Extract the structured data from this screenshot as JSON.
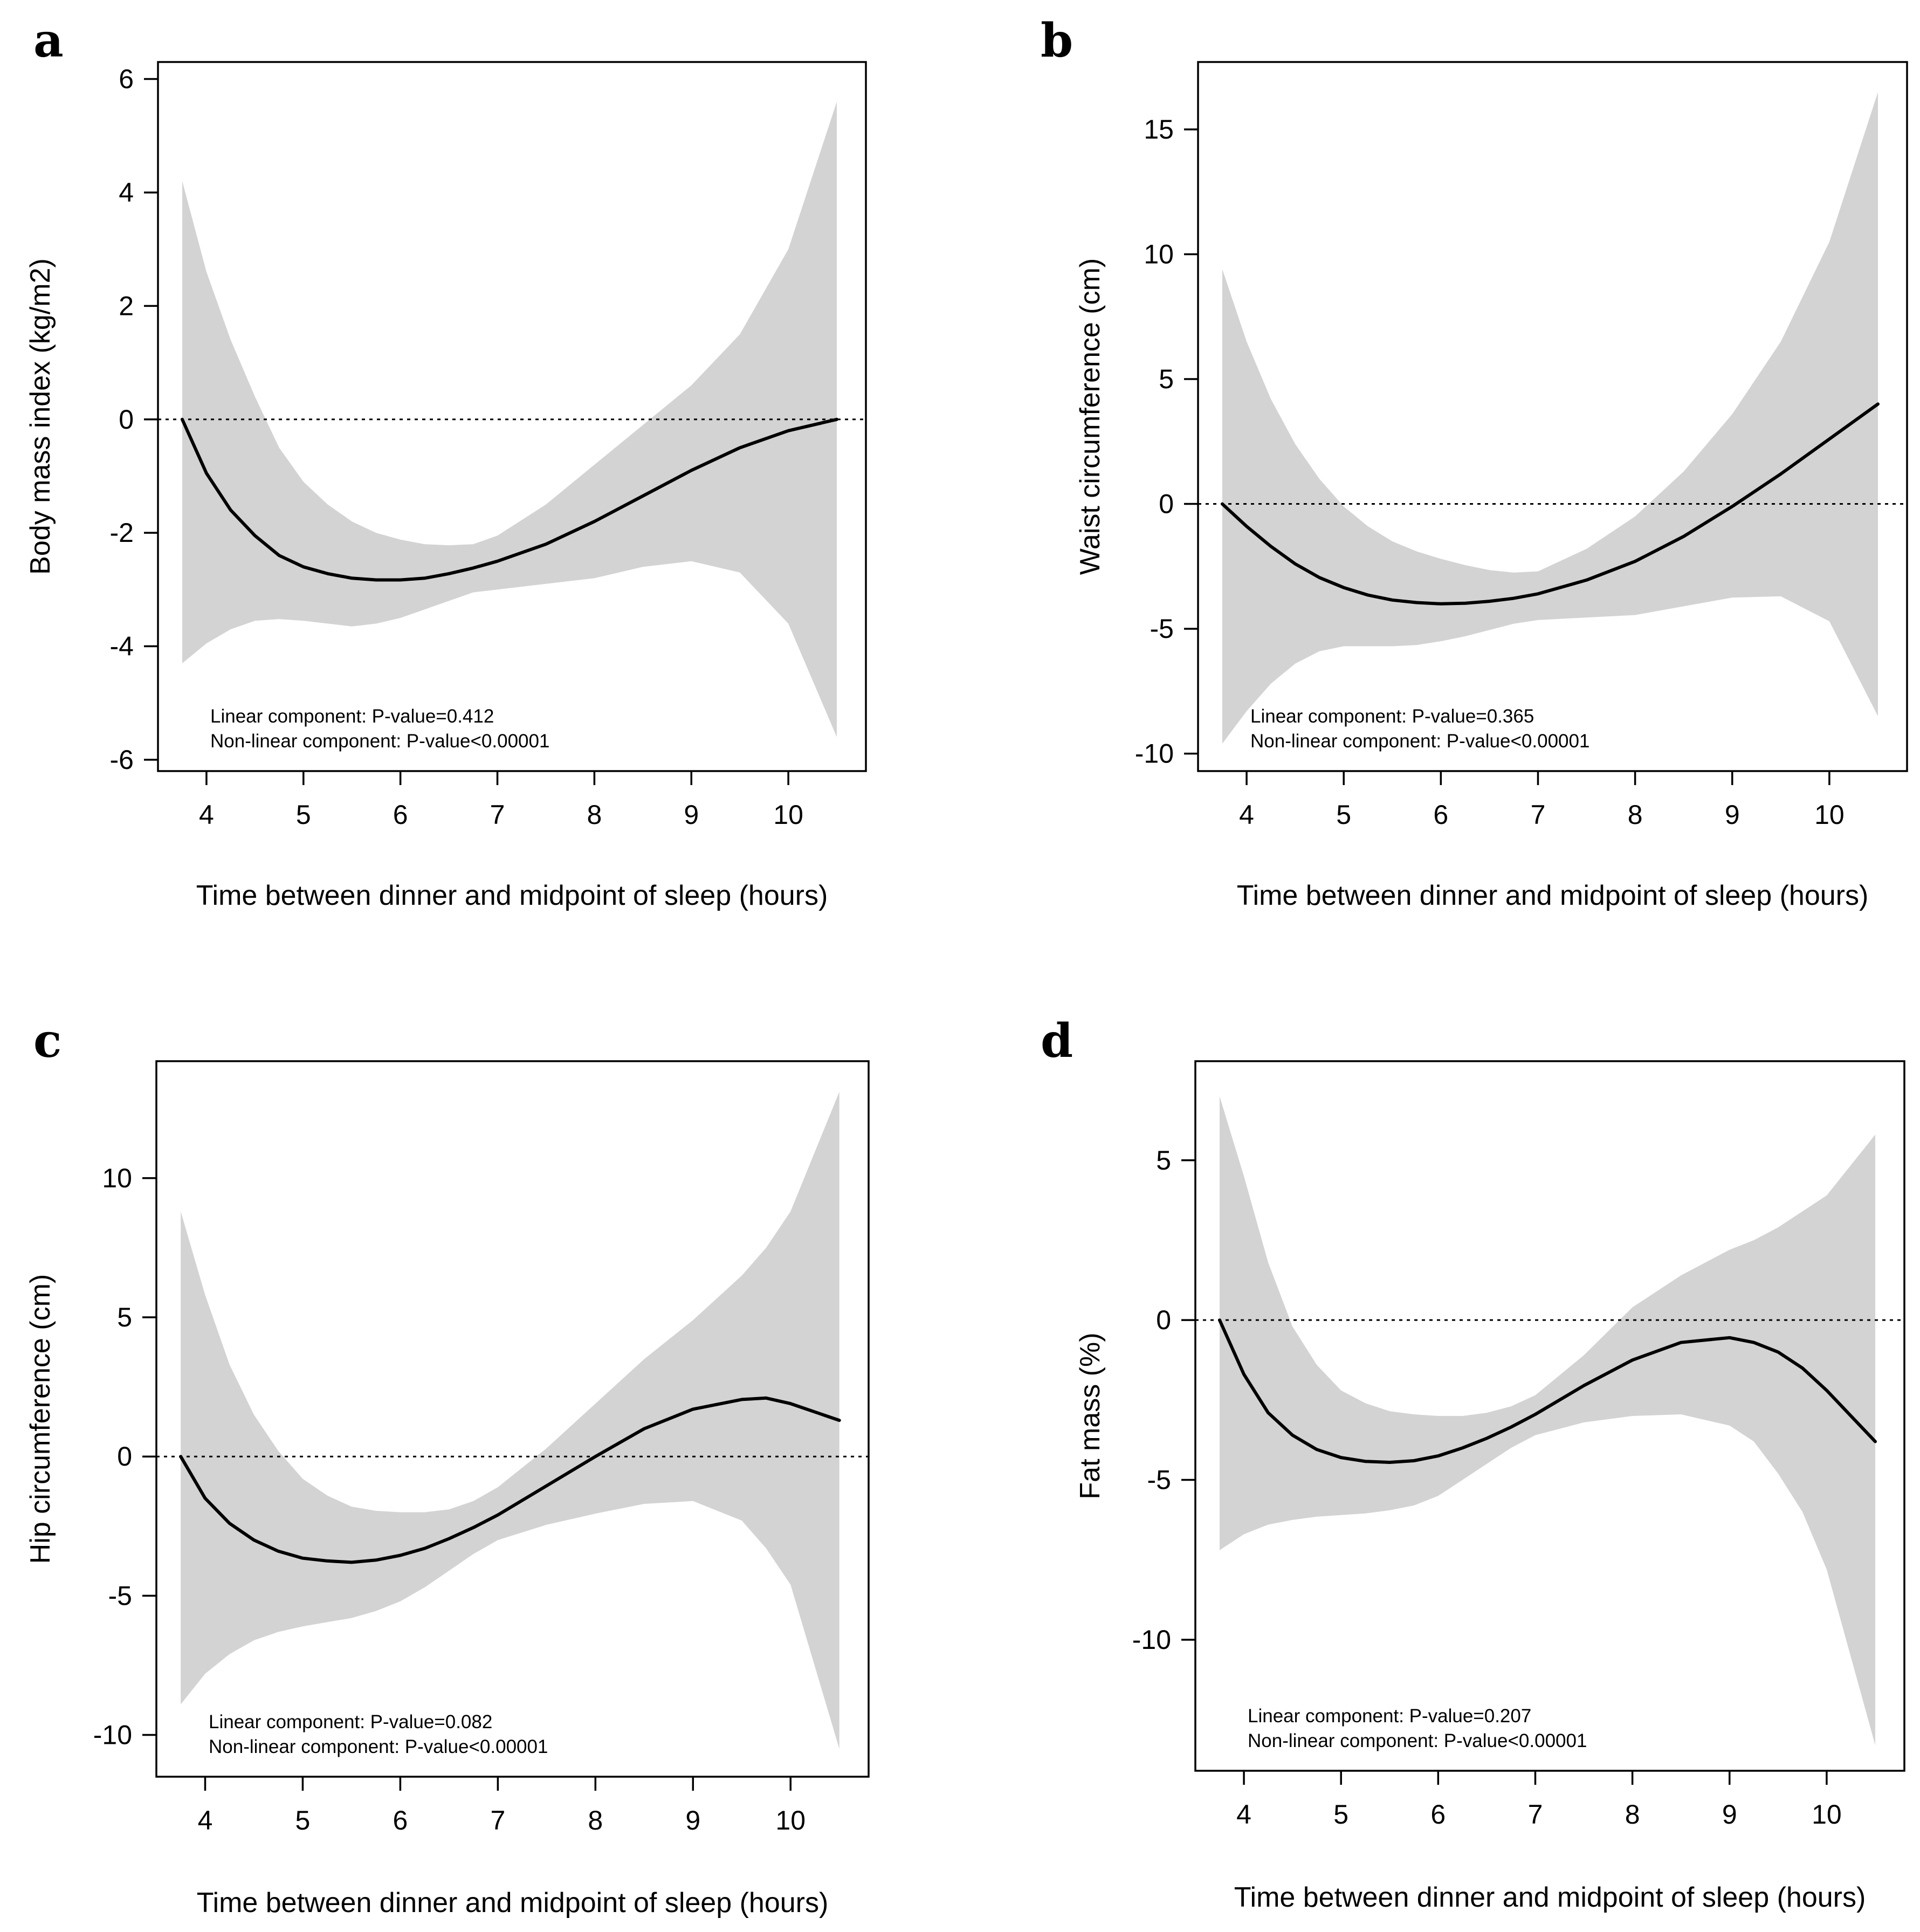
{
  "chart_data": [
    {
      "type": "line",
      "panel_label": "a",
      "xlabel": "Time between dinner and midpoint of sleep (hours)",
      "ylabel": "Body mass index (kg/m2)",
      "xlim": [
        3.5,
        10.8
      ],
      "ylim": [
        -6.2,
        6.3
      ],
      "xticks": [
        "4",
        "5",
        "6",
        "7",
        "8",
        "9",
        "10"
      ],
      "yticks": [
        "-6",
        "-4",
        "-2",
        "0",
        "2",
        "4",
        "6"
      ],
      "reference_line": 0,
      "annotations": [
        "Linear component: P-value=0.412",
        "Non-linear component: P-value<0.00001"
      ],
      "series": [
        {
          "name": "estimate",
          "x": [
            3.75,
            4.0,
            4.25,
            4.5,
            4.75,
            5.0,
            5.25,
            5.5,
            5.75,
            6.0,
            6.25,
            6.5,
            6.75,
            7.0,
            7.5,
            8.0,
            8.5,
            9.0,
            9.5,
            10.0,
            10.5
          ],
          "y": [
            0.0,
            -0.95,
            -1.6,
            -2.05,
            -2.4,
            -2.6,
            -2.72,
            -2.8,
            -2.83,
            -2.83,
            -2.8,
            -2.72,
            -2.62,
            -2.5,
            -2.2,
            -1.8,
            -1.35,
            -0.9,
            -0.5,
            -0.2,
            0.0
          ]
        },
        {
          "name": "95% CI upper",
          "x": [
            3.75,
            4.0,
            4.25,
            4.5,
            4.75,
            5.0,
            5.25,
            5.5,
            5.75,
            6.0,
            6.25,
            6.5,
            6.75,
            7.0,
            7.5,
            8.0,
            8.5,
            9.0,
            9.5,
            10.0,
            10.5
          ],
          "y": [
            4.2,
            2.6,
            1.4,
            0.4,
            -0.5,
            -1.1,
            -1.5,
            -1.8,
            -2.0,
            -2.12,
            -2.2,
            -2.22,
            -2.2,
            -2.05,
            -1.5,
            -0.8,
            -0.1,
            0.6,
            1.5,
            3.0,
            5.6
          ]
        },
        {
          "name": "95% CI lower",
          "x": [
            3.75,
            4.0,
            4.25,
            4.5,
            4.75,
            5.0,
            5.25,
            5.5,
            5.75,
            6.0,
            6.25,
            6.5,
            6.75,
            7.0,
            7.5,
            8.0,
            8.5,
            9.0,
            9.5,
            10.0,
            10.5
          ],
          "y": [
            -4.3,
            -3.95,
            -3.7,
            -3.55,
            -3.52,
            -3.55,
            -3.6,
            -3.65,
            -3.6,
            -3.5,
            -3.35,
            -3.2,
            -3.05,
            -3.0,
            -2.9,
            -2.8,
            -2.6,
            -2.5,
            -2.7,
            -3.6,
            -5.6
          ]
        }
      ]
    },
    {
      "type": "line",
      "panel_label": "b",
      "xlabel": "Time between dinner and midpoint of sleep (hours)",
      "ylabel": "Waist circumference (cm)",
      "xlim": [
        3.5,
        10.8
      ],
      "ylim": [
        -10.7,
        17.7
      ],
      "xticks": [
        "4",
        "5",
        "6",
        "7",
        "8",
        "9",
        "10"
      ],
      "yticks": [
        "-10",
        "-5",
        "0",
        "5",
        "10",
        "15"
      ],
      "reference_line": 0,
      "annotations": [
        "Linear component: P-value=0.365",
        "Non-linear component: P-value<0.00001"
      ],
      "series": [
        {
          "name": "estimate",
          "x": [
            3.75,
            4.0,
            4.25,
            4.5,
            4.75,
            5.0,
            5.25,
            5.5,
            5.75,
            6.0,
            6.25,
            6.5,
            6.75,
            7.0,
            7.5,
            8.0,
            8.5,
            9.0,
            9.5,
            10.0,
            10.5
          ],
          "y": [
            0.0,
            -0.9,
            -1.7,
            -2.4,
            -2.95,
            -3.35,
            -3.65,
            -3.85,
            -3.95,
            -4.0,
            -3.98,
            -3.9,
            -3.78,
            -3.6,
            -3.05,
            -2.3,
            -1.3,
            -0.1,
            1.2,
            2.6,
            4.0
          ]
        },
        {
          "name": "95% CI upper",
          "x": [
            3.75,
            4.0,
            4.25,
            4.5,
            4.75,
            5.0,
            5.25,
            5.5,
            5.75,
            6.0,
            6.25,
            6.5,
            6.75,
            7.0,
            7.5,
            8.0,
            8.5,
            9.0,
            9.5,
            10.0,
            10.5
          ],
          "y": [
            9.4,
            6.5,
            4.2,
            2.4,
            1.0,
            -0.1,
            -0.9,
            -1.5,
            -1.9,
            -2.2,
            -2.45,
            -2.65,
            -2.75,
            -2.7,
            -1.8,
            -0.5,
            1.3,
            3.6,
            6.5,
            10.5,
            16.5
          ]
        },
        {
          "name": "95% CI lower",
          "x": [
            3.75,
            4.0,
            4.25,
            4.5,
            4.75,
            5.0,
            5.25,
            5.5,
            5.75,
            6.0,
            6.25,
            6.5,
            6.75,
            7.0,
            7.5,
            8.0,
            8.5,
            9.0,
            9.5,
            10.0,
            10.5
          ],
          "y": [
            -9.6,
            -8.3,
            -7.2,
            -6.4,
            -5.9,
            -5.7,
            -5.7,
            -5.7,
            -5.65,
            -5.5,
            -5.3,
            -5.05,
            -4.8,
            -4.65,
            -4.55,
            -4.45,
            -4.1,
            -3.75,
            -3.7,
            -4.7,
            -8.5
          ]
        }
      ]
    },
    {
      "type": "line",
      "panel_label": "c",
      "xlabel": "Time between dinner and midpoint of sleep (hours)",
      "ylabel": "Hip circumference (cm)",
      "xlim": [
        3.5,
        10.8
      ],
      "ylim": [
        -11.5,
        14.2
      ],
      "xticks": [
        "4",
        "5",
        "6",
        "7",
        "8",
        "9",
        "10"
      ],
      "yticks": [
        "-10",
        "-5",
        "0",
        "5",
        "10"
      ],
      "reference_line": 0,
      "annotations": [
        "Linear component: P-value=0.082",
        "Non-linear component: P-value<0.00001"
      ],
      "series": [
        {
          "name": "estimate",
          "x": [
            3.75,
            4.0,
            4.25,
            4.5,
            4.75,
            5.0,
            5.25,
            5.5,
            5.75,
            6.0,
            6.25,
            6.5,
            6.75,
            7.0,
            7.5,
            8.0,
            8.5,
            9.0,
            9.5,
            9.75,
            10.0,
            10.5
          ],
          "y": [
            0.0,
            -1.5,
            -2.4,
            -3.0,
            -3.4,
            -3.65,
            -3.75,
            -3.8,
            -3.72,
            -3.55,
            -3.3,
            -2.95,
            -2.55,
            -2.1,
            -1.05,
            0.0,
            1.0,
            1.7,
            2.05,
            2.1,
            1.9,
            1.3
          ]
        },
        {
          "name": "95% CI upper",
          "x": [
            3.75,
            4.0,
            4.25,
            4.5,
            4.75,
            5.0,
            5.25,
            5.5,
            5.75,
            6.0,
            6.25,
            6.5,
            6.75,
            7.0,
            7.5,
            8.0,
            8.5,
            9.0,
            9.5,
            9.75,
            10.0,
            10.5
          ],
          "y": [
            8.8,
            5.8,
            3.3,
            1.5,
            0.2,
            -0.8,
            -1.4,
            -1.8,
            -1.95,
            -2.0,
            -2.0,
            -1.9,
            -1.6,
            -1.1,
            0.3,
            1.9,
            3.5,
            4.9,
            6.5,
            7.5,
            8.8,
            13.1
          ]
        },
        {
          "name": "95% CI lower",
          "x": [
            3.75,
            4.0,
            4.25,
            4.5,
            4.75,
            5.0,
            5.25,
            5.5,
            5.75,
            6.0,
            6.25,
            6.5,
            6.75,
            7.0,
            7.5,
            8.0,
            8.5,
            9.0,
            9.5,
            9.75,
            10.0,
            10.5
          ],
          "y": [
            -8.9,
            -7.8,
            -7.1,
            -6.6,
            -6.3,
            -6.1,
            -5.95,
            -5.8,
            -5.55,
            -5.2,
            -4.7,
            -4.1,
            -3.5,
            -3.0,
            -2.45,
            -2.05,
            -1.7,
            -1.6,
            -2.3,
            -3.3,
            -4.6,
            -10.5
          ]
        }
      ]
    },
    {
      "type": "line",
      "panel_label": "d",
      "xlabel": "Time between dinner and midpoint of sleep (hours)",
      "ylabel": "Fat mass (%)",
      "xlim": [
        3.5,
        10.8
      ],
      "ylim": [
        -14.1,
        8.1
      ],
      "xticks": [
        "4",
        "5",
        "6",
        "7",
        "8",
        "9",
        "10"
      ],
      "yticks": [
        "-10",
        "-5",
        "0",
        "5"
      ],
      "reference_line": 0,
      "annotations": [
        "Linear component: P-value=0.207",
        "Non-linear component: P-value<0.00001"
      ],
      "series": [
        {
          "name": "estimate",
          "x": [
            3.75,
            4.0,
            4.25,
            4.5,
            4.75,
            5.0,
            5.25,
            5.5,
            5.75,
            6.0,
            6.25,
            6.5,
            6.75,
            7.0,
            7.5,
            8.0,
            8.5,
            9.0,
            9.25,
            9.5,
            9.75,
            10.0,
            10.5
          ],
          "y": [
            0.0,
            -1.7,
            -2.9,
            -3.6,
            -4.05,
            -4.3,
            -4.42,
            -4.45,
            -4.4,
            -4.25,
            -4.0,
            -3.7,
            -3.35,
            -2.95,
            -2.05,
            -1.25,
            -0.7,
            -0.55,
            -0.7,
            -1.0,
            -1.5,
            -2.2,
            -3.8
          ]
        },
        {
          "name": "95% CI upper",
          "x": [
            3.75,
            4.0,
            4.25,
            4.5,
            4.75,
            5.0,
            5.25,
            5.5,
            5.75,
            6.0,
            6.25,
            6.5,
            6.75,
            7.0,
            7.5,
            8.0,
            8.5,
            9.0,
            9.25,
            9.5,
            9.75,
            10.0,
            10.5
          ],
          "y": [
            7.0,
            4.5,
            1.8,
            -0.2,
            -1.4,
            -2.2,
            -2.6,
            -2.85,
            -2.95,
            -3.0,
            -3.0,
            -2.9,
            -2.7,
            -2.35,
            -1.1,
            0.4,
            1.4,
            2.2,
            2.5,
            2.9,
            3.4,
            3.9,
            5.8
          ]
        },
        {
          "name": "95% CI lower",
          "x": [
            3.75,
            4.0,
            4.25,
            4.5,
            4.75,
            5.0,
            5.25,
            5.5,
            5.75,
            6.0,
            6.25,
            6.5,
            6.75,
            7.0,
            7.5,
            8.0,
            8.5,
            9.0,
            9.25,
            9.5,
            9.75,
            10.0,
            10.5
          ],
          "y": [
            -7.2,
            -6.7,
            -6.4,
            -6.25,
            -6.15,
            -6.1,
            -6.05,
            -5.95,
            -5.8,
            -5.5,
            -5.0,
            -4.5,
            -4.0,
            -3.6,
            -3.2,
            -3.0,
            -2.95,
            -3.3,
            -3.8,
            -4.8,
            -6.0,
            -7.8,
            -13.3
          ]
        }
      ]
    }
  ]
}
